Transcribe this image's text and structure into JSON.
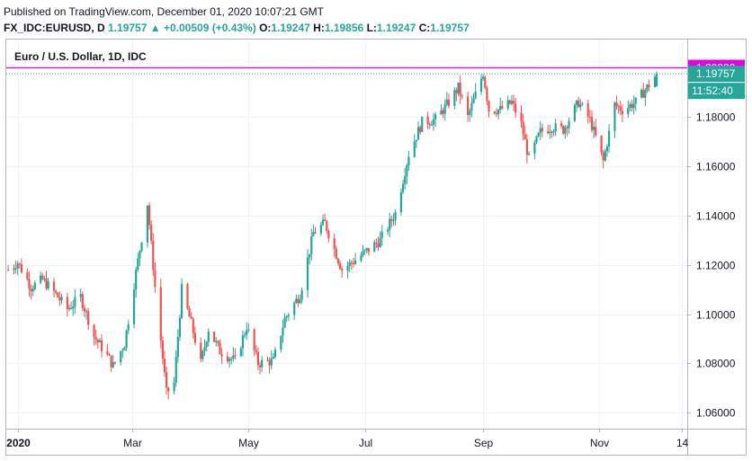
{
  "header": {
    "published": "Published on TradingView.com, December 01, 2020 10:07:21 GMT",
    "symbol": "FX_IDC:EURUSD, D",
    "last": "1.19757",
    "change": "▲ +0.00509 (+0.43%)",
    "o_label": "O:",
    "o": "1.19247",
    "h_label": "H:",
    "h": "1.19856",
    "l_label": "L:",
    "l": "1.19247",
    "c_label": "C:",
    "c": "1.19757"
  },
  "colors": {
    "up": "#26a69a",
    "down": "#ef5350",
    "level_line": "#e600e6",
    "grid": "#f0f3fa",
    "axis_text": "#131722",
    "border": "#b2b5be"
  },
  "chart_data": {
    "type": "candlestick",
    "title": "Euro / U.S. Dollar, 1D, IDC",
    "y_ticks": [
      "1.06000",
      "1.08000",
      "1.10000",
      "1.12000",
      "1.14000",
      "1.16000",
      "1.18000"
    ],
    "ylim": [
      1.0535,
      1.2115
    ],
    "x_ticks": [
      {
        "label": "2020",
        "date": "2020-01-01"
      },
      {
        "label": "Mar",
        "date": "2020-03-01"
      },
      {
        "label": "May",
        "date": "2020-05-01"
      },
      {
        "label": "Jul",
        "date": "2020-07-01"
      },
      {
        "label": "Sep",
        "date": "2020-09-01"
      },
      {
        "label": "Nov",
        "date": "2020-11-01"
      },
      {
        "label": "14",
        "date": "2020-12-14"
      }
    ],
    "xlim": [
      "2019-12-26",
      "2020-12-17"
    ],
    "level_line": {
      "value": 1.2,
      "label": "1.20000"
    },
    "last_price": {
      "value": 1.19757,
      "label": "1.19757",
      "countdown": "11:52:40"
    },
    "anchors": [
      [
        "2019-12-27",
        1.118
      ],
      [
        "2020-01-01",
        1.121
      ],
      [
        "2020-01-08",
        1.111
      ],
      [
        "2020-01-14",
        1.114
      ],
      [
        "2020-01-20",
        1.109
      ],
      [
        "2020-01-27",
        1.102
      ],
      [
        "2020-02-03",
        1.107
      ],
      [
        "2020-02-10",
        1.091
      ],
      [
        "2020-02-17",
        1.083
      ],
      [
        "2020-02-20",
        1.079
      ],
      [
        "2020-02-26",
        1.088
      ],
      [
        "2020-03-03",
        1.117
      ],
      [
        "2020-03-09",
        1.145
      ],
      [
        "2020-03-13",
        1.111
      ],
      [
        "2020-03-19",
        1.068
      ],
      [
        "2020-03-23",
        1.072
      ],
      [
        "2020-03-27",
        1.11
      ],
      [
        "2020-04-01",
        1.096
      ],
      [
        "2020-04-06",
        1.08
      ],
      [
        "2020-04-10",
        1.094
      ],
      [
        "2020-04-16",
        1.085
      ],
      [
        "2020-04-24",
        1.081
      ],
      [
        "2020-04-30",
        1.095
      ],
      [
        "2020-05-06",
        1.08
      ],
      [
        "2020-05-14",
        1.081
      ],
      [
        "2020-05-20",
        1.098
      ],
      [
        "2020-05-28",
        1.108
      ],
      [
        "2020-06-04",
        1.133
      ],
      [
        "2020-06-10",
        1.137
      ],
      [
        "2020-06-19",
        1.118
      ],
      [
        "2020-06-26",
        1.122
      ],
      [
        "2020-07-01",
        1.125
      ],
      [
        "2020-07-09",
        1.13
      ],
      [
        "2020-07-17",
        1.141
      ],
      [
        "2020-07-24",
        1.165
      ],
      [
        "2020-07-31",
        1.178
      ],
      [
        "2020-08-07",
        1.179
      ],
      [
        "2020-08-14",
        1.186
      ],
      [
        "2020-08-19",
        1.192
      ],
      [
        "2020-08-24",
        1.18
      ],
      [
        "2020-09-01",
        1.198
      ],
      [
        "2020-09-04",
        1.183
      ],
      [
        "2020-09-10",
        1.183
      ],
      [
        "2020-09-16",
        1.186
      ],
      [
        "2020-09-21",
        1.177
      ],
      [
        "2020-09-25",
        1.163
      ],
      [
        "2020-10-01",
        1.174
      ],
      [
        "2020-10-07",
        1.176
      ],
      [
        "2020-10-13",
        1.175
      ],
      [
        "2020-10-21",
        1.186
      ],
      [
        "2020-10-27",
        1.179
      ],
      [
        "2020-11-03",
        1.162
      ],
      [
        "2020-11-09",
        1.185
      ],
      [
        "2020-11-13",
        1.183
      ],
      [
        "2020-11-20",
        1.186
      ],
      [
        "2020-11-26",
        1.192
      ],
      [
        "2020-12-01",
        1.1976
      ]
    ]
  }
}
